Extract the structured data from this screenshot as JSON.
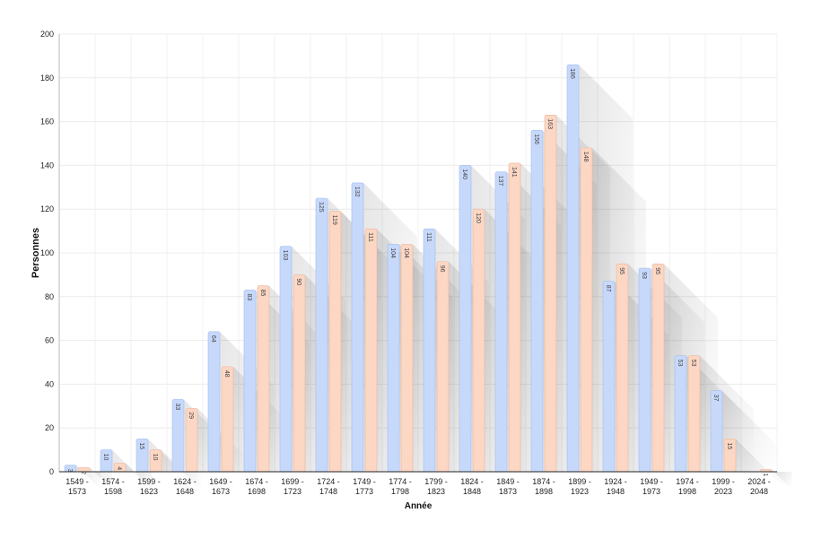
{
  "chart_data": {
    "type": "bar",
    "ylabel": "Personnes",
    "xlabel": "Année",
    "ylim": [
      0,
      200
    ],
    "yticks": [
      0,
      20,
      40,
      60,
      80,
      100,
      120,
      140,
      160,
      180,
      200
    ],
    "grid": true,
    "categories": [
      [
        "1549 -",
        "1573"
      ],
      [
        "1574 -",
        "1598"
      ],
      [
        "1599 -",
        "1623"
      ],
      [
        "1624 -",
        "1648"
      ],
      [
        "1649 -",
        "1673"
      ],
      [
        "1674 -",
        "1698"
      ],
      [
        "1699 -",
        "1723"
      ],
      [
        "1724 -",
        "1748"
      ],
      [
        "1749 -",
        "1773"
      ],
      [
        "1774 -",
        "1798"
      ],
      [
        "1799 -",
        "1823"
      ],
      [
        "1824 -",
        "1848"
      ],
      [
        "1849 -",
        "1873"
      ],
      [
        "1874 -",
        "1898"
      ],
      [
        "1899 -",
        "1923"
      ],
      [
        "1924 -",
        "1948"
      ],
      [
        "1949 -",
        "1973"
      ],
      [
        "1974 -",
        "1998"
      ],
      [
        "1999 -",
        "2023"
      ],
      [
        "2024 -",
        "2048"
      ]
    ],
    "series": [
      {
        "color": "#c7d9fb",
        "stroke": "#9fbcf2",
        "values": [
          3,
          10,
          15,
          33,
          64,
          83,
          103,
          125,
          132,
          104,
          111,
          140,
          137,
          156,
          186,
          87,
          93,
          53,
          37,
          0
        ]
      },
      {
        "color": "#fbd7c4",
        "stroke": "#eeb598",
        "values": [
          2,
          4,
          10,
          29,
          48,
          85,
          90,
          119,
          111,
          104,
          96,
          120,
          141,
          163,
          148,
          95,
          95,
          53,
          15,
          1
        ]
      }
    ]
  }
}
